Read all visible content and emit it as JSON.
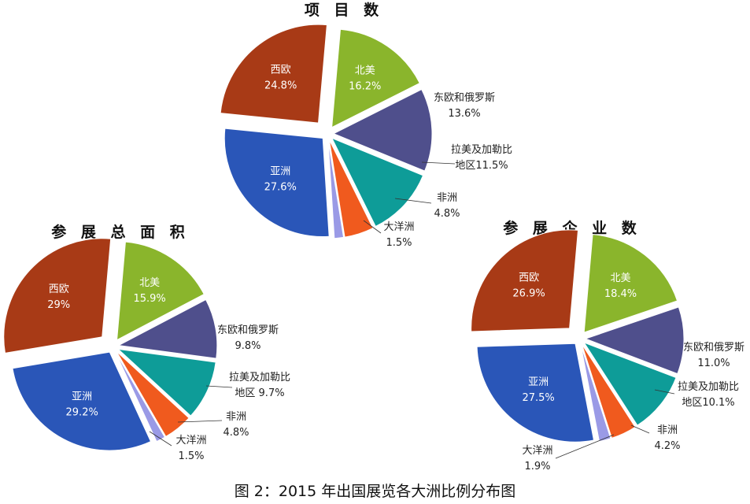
{
  "caption": "图 2：2015 年出国展览各大洲比例分布图",
  "colors": {
    "西欧": "#a83a16",
    "北美": "#8ab52c",
    "东欧和俄罗斯": "#4f4f8c",
    "拉美及加勒比地区": "#0e9c98",
    "非洲": "#f05a1e",
    "大洋洲": "#9a9ae6",
    "亚洲": "#2a56b8"
  },
  "chart_data": [
    {
      "type": "pie",
      "title": "项 目 数",
      "slices": [
        {
          "name": "北美",
          "label_lines": [
            "北美",
            "16.2%"
          ],
          "value": 16.2
        },
        {
          "name": "东欧和俄罗斯",
          "label_lines": [
            "东欧和俄罗斯",
            "13.6%"
          ],
          "value": 13.6
        },
        {
          "name": "拉美及加勒比地区",
          "label_lines": [
            "拉美及加勒比",
            "地区11.5%"
          ],
          "value": 11.5
        },
        {
          "name": "非洲",
          "label_lines": [
            "非洲",
            "4.8%"
          ],
          "value": 4.8
        },
        {
          "name": "大洋洲",
          "label_lines": [
            "大洋洲",
            "1.5%"
          ],
          "value": 1.5
        },
        {
          "name": "亚洲",
          "label_lines": [
            "亚洲",
            "27.6%"
          ],
          "value": 27.6
        },
        {
          "name": "西欧",
          "label_lines": [
            "西欧",
            "24.8%"
          ],
          "value": 24.8
        }
      ]
    },
    {
      "type": "pie",
      "title": "参 展 总 面 积",
      "slices": [
        {
          "name": "北美",
          "label_lines": [
            "北美",
            "15.9%"
          ],
          "value": 15.9
        },
        {
          "name": "东欧和俄罗斯",
          "label_lines": [
            "东欧和俄罗斯",
            "9.8%"
          ],
          "value": 9.8
        },
        {
          "name": "拉美及加勒比地区",
          "label_lines": [
            "拉美及加勒比",
            "地区 9.7%"
          ],
          "value": 9.7
        },
        {
          "name": "非洲",
          "label_lines": [
            "非洲",
            "4.8%"
          ],
          "value": 4.8
        },
        {
          "name": "大洋洲",
          "label_lines": [
            "大洋洲",
            "1.5%"
          ],
          "value": 1.5
        },
        {
          "name": "亚洲",
          "label_lines": [
            "亚洲",
            "29.2%"
          ],
          "value": 29.2
        },
        {
          "name": "西欧",
          "label_lines": [
            "西欧",
            "29%"
          ],
          "value": 29
        }
      ]
    },
    {
      "type": "pie",
      "title": "参 展 企 业 数",
      "slices": [
        {
          "name": "北美",
          "label_lines": [
            "北美",
            "18.4%"
          ],
          "value": 18.4
        },
        {
          "name": "东欧和俄罗斯",
          "label_lines": [
            "东欧和俄罗斯",
            "11.0%"
          ],
          "value": 11.0
        },
        {
          "name": "拉美及加勒比地区",
          "label_lines": [
            "拉美及加勒比",
            "地区10.1%"
          ],
          "value": 10.1
        },
        {
          "name": "非洲",
          "label_lines": [
            "非洲",
            "4.2%"
          ],
          "value": 4.2
        },
        {
          "name": "大洋洲",
          "label_lines": [
            "大洋洲",
            "1.9%"
          ],
          "value": 1.9
        },
        {
          "name": "亚洲",
          "label_lines": [
            "亚洲",
            "27.5%"
          ],
          "value": 27.5
        },
        {
          "name": "西欧",
          "label_lines": [
            "西欧",
            "26.9%"
          ],
          "value": 26.9
        }
      ]
    }
  ]
}
